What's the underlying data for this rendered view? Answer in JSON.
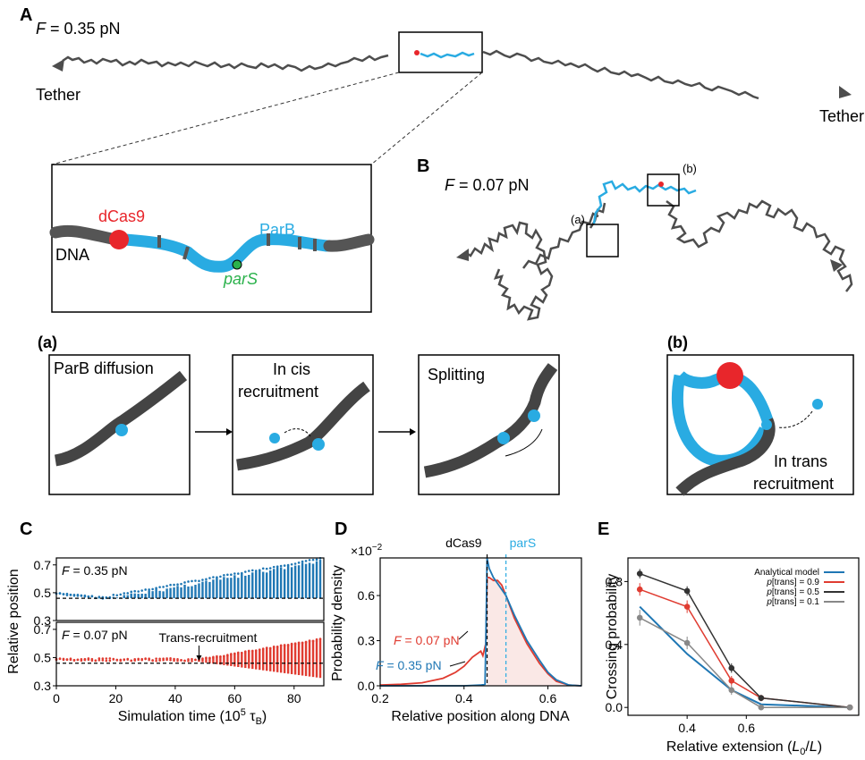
{
  "panelA": {
    "label": "A",
    "force": "F",
    "force_rest": " = 0.35 pN",
    "tether_left": "Tether",
    "tether_right": "Tether",
    "zoom": {
      "dcas9": "dCas9",
      "dna": "DNA",
      "parb": "ParB",
      "pars": "parS"
    }
  },
  "panelB": {
    "label": "B",
    "force": "F",
    "force_rest": " = 0.07 pN",
    "box_a": "(a)",
    "box_b": "(b)"
  },
  "mechanisms": {
    "label_a": "(a)",
    "label_b": "(b)",
    "step1": "ParB diffusion",
    "step2_l1": "In cis",
    "step2_l2": "recruitment",
    "step3": "Splitting",
    "trans_l1": "In trans",
    "trans_l2": "recruitment"
  },
  "colors": {
    "dna": "#4d4d4d",
    "parb": "#29abe2",
    "dcas9": "#e8262b",
    "pars": "#2bb24c",
    "blue": "#1f77b4",
    "red": "#e03c31",
    "gray": "#888888"
  },
  "chart_data": [
    {
      "id": "C",
      "type": "scatter",
      "label": "C",
      "xlabel_main": "Simulation time (10",
      "xlabel_sup": "5",
      "xlabel_tau": " τ",
      "xlabel_sub": "B",
      "xlabel_end": ")",
      "ylabel": "Relative position",
      "xlim": [
        0,
        90
      ],
      "xticks": [
        "0",
        "20",
        "40",
        "60",
        "80"
      ],
      "top": {
        "force": "F",
        "force_rest": " = 0.35 pN",
        "ylim": [
          0.3,
          0.75
        ],
        "yticks": [
          "0.3",
          "0.5",
          "0.7"
        ],
        "reference": 0.46
      },
      "bottom": {
        "force": "F",
        "force_rest": " = 0.07 pN",
        "ylim": [
          0.3,
          0.75
        ],
        "yticks": [
          "0.3",
          "0.5",
          "0.7"
        ],
        "reference": 0.46,
        "annotation": "Trans-recruitment",
        "annotation_x": 48
      }
    },
    {
      "id": "D",
      "type": "line",
      "label": "D",
      "xlabel": "Relative position along DNA",
      "ylabel": "Probability density",
      "scale": "×10",
      "scale_exp": "−2",
      "xlim": [
        0.2,
        0.68
      ],
      "ylim": [
        0,
        0.85
      ],
      "xticks": [
        "0.2",
        "0.4",
        "0.6"
      ],
      "yticks": [
        "0.0",
        "0.3",
        "0.6"
      ],
      "markers": {
        "dcas9": "dCas9",
        "pars": "parS",
        "dcas9_x": 0.455,
        "pars_x": 0.5
      },
      "series": [
        {
          "name_f": "F",
          "name_rest": " = 0.07 pN",
          "color": "red",
          "x": [
            0.2,
            0.25,
            0.3,
            0.35,
            0.38,
            0.4,
            0.42,
            0.44,
            0.445,
            0.452,
            0.455,
            0.46,
            0.47,
            0.48,
            0.49,
            0.5,
            0.52,
            0.55,
            0.58,
            0.6,
            0.62,
            0.65,
            0.68
          ],
          "y": [
            0.005,
            0.01,
            0.02,
            0.05,
            0.09,
            0.13,
            0.19,
            0.23,
            0.2,
            0.28,
            0.72,
            0.72,
            0.7,
            0.7,
            0.67,
            0.6,
            0.45,
            0.28,
            0.15,
            0.08,
            0.03,
            0.005,
            0.0
          ]
        },
        {
          "name_f": "F",
          "name_rest": " = 0.35 pN",
          "color": "blue",
          "x": [
            0.2,
            0.3,
            0.4,
            0.44,
            0.45,
            0.452,
            0.455,
            0.46,
            0.47,
            0.48,
            0.5,
            0.52,
            0.55,
            0.58,
            0.6,
            0.62,
            0.65,
            0.68
          ],
          "y": [
            0.0,
            0.0,
            0.0,
            0.005,
            0.01,
            0.3,
            0.85,
            0.78,
            0.72,
            0.68,
            0.6,
            0.47,
            0.3,
            0.17,
            0.09,
            0.04,
            0.005,
            0.0
          ]
        }
      ]
    },
    {
      "id": "E",
      "type": "line",
      "label": "E",
      "xlabel_main": "Relative extension (",
      "xlabel_l0": "L",
      "xlabel_l0sub": "0",
      "xlabel_slash": "/",
      "xlabel_l": "L",
      "xlabel_end": ")",
      "ylabel": "Crossing probability",
      "xlim": [
        0.2,
        0.98
      ],
      "ylim": [
        -0.05,
        0.95
      ],
      "xticks": [
        "0.4",
        "0.6"
      ],
      "yticks": [
        "0.0",
        "0.4",
        "0.8"
      ],
      "x": [
        0.24,
        0.4,
        0.55,
        0.65,
        0.95
      ],
      "series": [
        {
          "name": "Analytical model",
          "color": "blue",
          "marker": false,
          "y": [
            0.64,
            0.34,
            0.11,
            0.02,
            0.0
          ]
        },
        {
          "name_p": "p",
          "name_rest": "[trans] = 0.9",
          "color": "red",
          "marker": true,
          "y": [
            0.75,
            0.64,
            0.17,
            0.06,
            0.0
          ],
          "err": [
            0.04,
            0.04,
            0.03,
            0.02,
            0.01
          ]
        },
        {
          "name_p": "p",
          "name_rest": "[trans] = 0.5",
          "color": "dark",
          "marker": true,
          "y": [
            0.85,
            0.74,
            0.25,
            0.06,
            0.0
          ],
          "err": [
            0.03,
            0.03,
            0.03,
            0.02,
            0.01
          ]
        },
        {
          "name_p": "p",
          "name_rest": "[trans] = 0.1",
          "color": "gray",
          "marker": true,
          "y": [
            0.57,
            0.41,
            0.11,
            0.0,
            0.0
          ],
          "err": [
            0.05,
            0.04,
            0.03,
            0.01,
            0.01
          ]
        }
      ]
    }
  ]
}
